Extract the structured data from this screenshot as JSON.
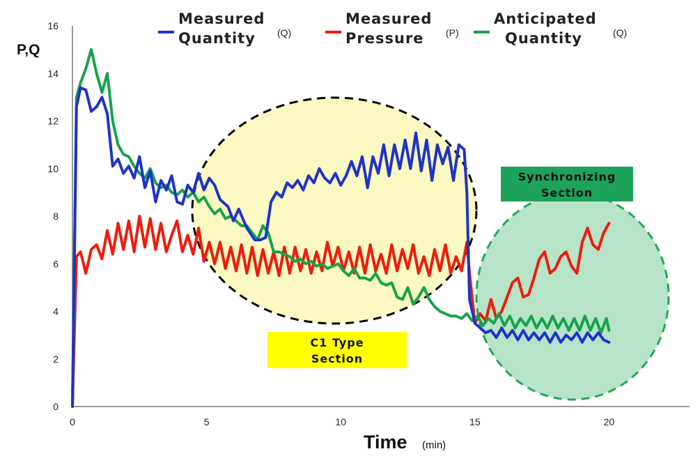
{
  "colors": {
    "measured_quantity": "#1e33c8",
    "measured_pressure": "#ee1c0c",
    "anticipated_quantity": "#16a34a",
    "c1_section_fill": "#fbf8c1",
    "c1_label_bg": "#ffff00",
    "sync_section_fill": "#b7e3c8",
    "sync_section_border": "#22aa55",
    "sync_label_bg": "#1ea35a"
  },
  "chart_data": {
    "type": "line",
    "ylabel": "P,Q",
    "xlabel": "Time",
    "xunit": "(min)",
    "xlim": [
      0,
      23
    ],
    "ylim": [
      0,
      16
    ],
    "xticks": [
      0,
      5,
      10,
      15,
      20
    ],
    "yticks": [
      0,
      2,
      4,
      6,
      8,
      10,
      12,
      14,
      16
    ],
    "grid": false,
    "legend_position": "top",
    "series": [
      {
        "key": "measured_quantity",
        "label_line1": "Measured",
        "label_line2": "Quantity",
        "unit": "(Q)",
        "x": [
          0,
          0.15,
          0.3,
          0.5,
          0.7,
          0.9,
          1.1,
          1.3,
          1.5,
          1.7,
          1.9,
          2.1,
          2.3,
          2.5,
          2.7,
          2.9,
          3.1,
          3.3,
          3.5,
          3.7,
          3.9,
          4.1,
          4.3,
          4.5,
          4.7,
          4.9,
          5.1,
          5.3,
          5.5,
          5.8,
          6.0,
          6.2,
          6.5,
          6.8,
          7.0,
          7.2,
          7.4,
          7.6,
          7.8,
          8.0,
          8.2,
          8.4,
          8.6,
          8.8,
          9.0,
          9.2,
          9.4,
          9.6,
          9.8,
          10.0,
          10.2,
          10.4,
          10.6,
          10.8,
          11.0,
          11.2,
          11.4,
          11.6,
          11.8,
          12.0,
          12.2,
          12.4,
          12.6,
          12.8,
          13.0,
          13.2,
          13.4,
          13.6,
          13.8,
          14.0,
          14.2,
          14.4,
          14.6,
          14.7,
          14.8,
          15.0,
          15.2,
          15.4,
          15.6,
          15.8,
          16.0,
          16.2,
          16.4,
          16.6,
          16.8,
          17.0,
          17.2,
          17.4,
          17.6,
          17.8,
          18.0,
          18.2,
          18.4,
          18.6,
          18.8,
          19.0,
          19.2,
          19.4,
          19.6,
          19.8,
          20.0
        ],
        "y": [
          0,
          12.6,
          13.4,
          13.3,
          12.4,
          12.6,
          13.0,
          12.3,
          10.1,
          10.4,
          9.8,
          10.1,
          9.6,
          10.5,
          9.2,
          9.9,
          8.6,
          9.5,
          9.1,
          9.7,
          8.6,
          8.5,
          9.3,
          9.0,
          9.8,
          9.1,
          9.6,
          9.3,
          8.7,
          8.4,
          7.8,
          8.3,
          7.5,
          7.0,
          7.0,
          7.1,
          8.6,
          9.0,
          8.8,
          9.4,
          9.2,
          9.5,
          9.1,
          9.7,
          9.4,
          10.0,
          9.6,
          9.4,
          9.8,
          9.3,
          9.7,
          10.3,
          9.7,
          10.5,
          9.2,
          10.5,
          9.8,
          11.0,
          9.7,
          11.0,
          10.0,
          11.2,
          10.0,
          11.5,
          9.9,
          11.2,
          9.5,
          11.0,
          10.2,
          10.9,
          9.5,
          11.0,
          10.8,
          9.0,
          4.5,
          3.5,
          3.3,
          3.1,
          3.2,
          2.9,
          3.3,
          2.9,
          3.2,
          2.8,
          3.2,
          2.8,
          3.1,
          2.8,
          3.1,
          2.7,
          3.1,
          2.7,
          3.0,
          2.8,
          3.1,
          2.7,
          3.1,
          2.8,
          3.1,
          2.8,
          2.7
        ]
      },
      {
        "key": "measured_pressure",
        "label_line1": "Measured",
        "label_line2": "Pressure",
        "unit": "(P)",
        "x": [
          0,
          0.15,
          0.3,
          0.5,
          0.7,
          0.9,
          1.1,
          1.3,
          1.5,
          1.7,
          1.9,
          2.1,
          2.3,
          2.5,
          2.7,
          2.9,
          3.1,
          3.3,
          3.5,
          3.7,
          3.9,
          4.1,
          4.3,
          4.5,
          4.7,
          4.9,
          5.1,
          5.3,
          5.5,
          5.7,
          5.9,
          6.1,
          6.3,
          6.5,
          6.7,
          6.9,
          7.1,
          7.3,
          7.5,
          7.7,
          7.9,
          8.1,
          8.3,
          8.5,
          8.7,
          8.9,
          9.1,
          9.3,
          9.5,
          9.7,
          9.9,
          10.1,
          10.3,
          10.5,
          10.7,
          10.9,
          11.1,
          11.3,
          11.5,
          11.7,
          11.9,
          12.1,
          12.3,
          12.5,
          12.7,
          12.9,
          13.1,
          13.3,
          13.5,
          13.7,
          13.9,
          14.1,
          14.3,
          14.5,
          14.7,
          14.8,
          15.0,
          15.2,
          15.4,
          15.6,
          15.8,
          16.0,
          16.2,
          16.4,
          16.6,
          16.8,
          17.0,
          17.2,
          17.4,
          17.6,
          17.8,
          18.0,
          18.2,
          18.4,
          18.6,
          18.8,
          19.0,
          19.2,
          19.4,
          19.6,
          19.8,
          20.0
        ],
        "y": [
          0,
          6.3,
          6.5,
          5.6,
          6.6,
          6.8,
          6.2,
          7.4,
          6.4,
          7.7,
          6.6,
          7.8,
          6.5,
          8.0,
          6.7,
          7.9,
          6.6,
          7.7,
          6.5,
          7.2,
          7.8,
          6.5,
          7.2,
          6.4,
          7.5,
          6.1,
          6.9,
          6.0,
          6.9,
          5.8,
          6.7,
          5.7,
          6.8,
          5.6,
          6.7,
          5.5,
          6.6,
          5.6,
          6.5,
          5.5,
          6.7,
          5.6,
          6.7,
          5.7,
          6.6,
          5.6,
          6.5,
          5.7,
          6.9,
          5.9,
          6.7,
          5.7,
          6.5,
          5.6,
          6.7,
          5.6,
          6.8,
          5.7,
          6.4,
          5.6,
          6.8,
          5.7,
          6.6,
          5.8,
          6.8,
          5.6,
          6.3,
          5.5,
          6.6,
          5.7,
          6.8,
          5.6,
          6.3,
          5.7,
          6.9,
          5.6,
          3.5,
          3.9,
          3.6,
          4.5,
          3.7,
          4.0,
          4.6,
          5.2,
          5.4,
          4.6,
          4.7,
          5.4,
          6.2,
          6.5,
          5.6,
          5.8,
          6.3,
          6.5,
          5.9,
          5.6,
          6.9,
          7.5,
          6.8,
          6.6,
          7.3,
          7.7
        ]
      },
      {
        "key": "anticipated_quantity",
        "label_line1": "Anticipated",
        "label_line2": "Quantity",
        "unit": "(Q)",
        "x": [
          0,
          0.15,
          0.3,
          0.5,
          0.7,
          0.9,
          1.1,
          1.3,
          1.5,
          1.7,
          1.9,
          2.1,
          2.3,
          2.5,
          2.7,
          2.9,
          3.1,
          3.3,
          3.5,
          3.7,
          3.9,
          4.1,
          4.3,
          4.5,
          4.7,
          4.9,
          5.1,
          5.3,
          5.5,
          5.7,
          5.9,
          6.1,
          6.3,
          6.5,
          6.7,
          6.9,
          7.1,
          7.3,
          7.5,
          7.7,
          7.9,
          8.1,
          8.3,
          8.5,
          8.7,
          8.9,
          9.1,
          9.3,
          9.5,
          9.7,
          9.9,
          10.1,
          10.3,
          10.5,
          10.7,
          10.9,
          11.1,
          11.3,
          11.5,
          11.7,
          11.9,
          12.1,
          12.3,
          12.5,
          12.7,
          12.9,
          13.1,
          13.3,
          13.5,
          13.7,
          13.9,
          14.1,
          14.3,
          14.5,
          14.7,
          14.9,
          15.1,
          15.3,
          15.5,
          15.7,
          15.9,
          16.1,
          16.3,
          16.5,
          16.7,
          16.9,
          17.1,
          17.3,
          17.5,
          17.7,
          17.9,
          18.1,
          18.3,
          18.5,
          18.7,
          18.9,
          19.1,
          19.3,
          19.5,
          19.7,
          19.9,
          20.0
        ],
        "y": [
          0,
          13.0,
          13.6,
          14.2,
          15.0,
          14.0,
          13.2,
          14.0,
          12.0,
          11.0,
          10.6,
          10.5,
          10.1,
          9.8,
          9.6,
          10.0,
          9.4,
          9.2,
          9.3,
          9.0,
          8.9,
          9.1,
          8.8,
          9.0,
          8.6,
          8.8,
          8.4,
          8.1,
          8.3,
          7.9,
          8.0,
          7.8,
          7.6,
          7.6,
          7.3,
          7.0,
          7.6,
          7.3,
          6.5,
          6.5,
          6.4,
          6.3,
          6.1,
          6.2,
          6.0,
          6.1,
          5.9,
          6.0,
          5.8,
          5.9,
          6.0,
          5.7,
          5.5,
          5.8,
          5.4,
          5.4,
          5.3,
          5.6,
          5.2,
          5.1,
          5.2,
          4.6,
          4.5,
          5.0,
          4.3,
          4.6,
          5.0,
          4.5,
          4.2,
          4.0,
          3.9,
          3.8,
          3.8,
          3.7,
          3.9,
          3.6,
          3.8,
          3.4,
          3.7,
          3.5,
          3.9,
          3.4,
          3.8,
          3.3,
          3.7,
          3.4,
          3.8,
          3.3,
          3.7,
          3.3,
          3.8,
          3.3,
          3.7,
          3.2,
          3.7,
          3.2,
          3.8,
          3.2,
          3.7,
          3.1,
          3.7,
          3.2
        ]
      }
    ]
  },
  "annotations": {
    "c1_line1": "C1 Type",
    "c1_line2": "Section",
    "sync_line1": "Synchronizing",
    "sync_line2": "Section"
  }
}
